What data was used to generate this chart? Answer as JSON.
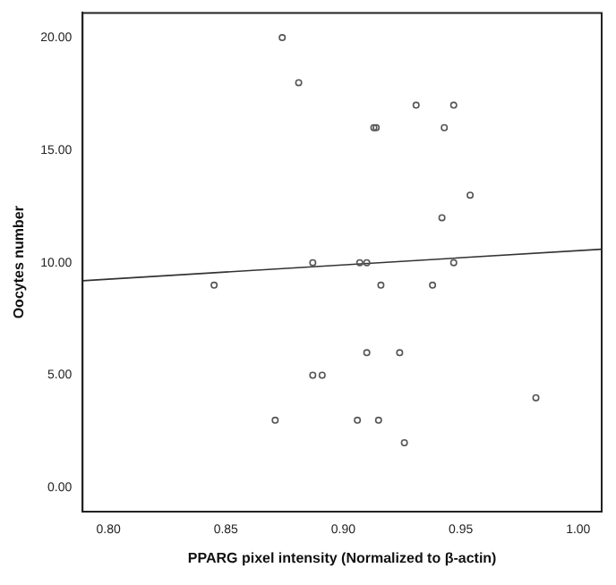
{
  "chart_data": {
    "type": "scatter",
    "xlabel": "PPARG pixel intensity (Normalized to β-actin)",
    "ylabel": "Oocytes number",
    "xlim": [
      0.789,
      1.01
    ],
    "ylim": [
      -1.06,
      21.1
    ],
    "xticks": [
      {
        "value": 0.8,
        "label": "0.80"
      },
      {
        "value": 0.85,
        "label": "0.85"
      },
      {
        "value": 0.9,
        "label": "0.90"
      },
      {
        "value": 0.95,
        "label": "0.95"
      },
      {
        "value": 1.0,
        "label": "1.00"
      }
    ],
    "yticks": [
      {
        "value": 0,
        "label": "0.00"
      },
      {
        "value": 5,
        "label": "5.00"
      },
      {
        "value": 10,
        "label": "10.00"
      },
      {
        "value": 15,
        "label": "15.00"
      },
      {
        "value": 20,
        "label": "20.00"
      }
    ],
    "grid": false,
    "legend": false,
    "marker": "circle",
    "series": [
      {
        "color": "#555555",
        "x": [
          0.874,
          0.881,
          0.913,
          0.914,
          0.931,
          0.947,
          0.943,
          0.954,
          0.942,
          0.887,
          0.907,
          0.91,
          0.947,
          0.845,
          0.916,
          0.938,
          0.91,
          0.924,
          0.887,
          0.891,
          0.982,
          0.871,
          0.906,
          0.915,
          0.926
        ],
        "values": [
          20,
          18,
          16,
          16,
          17,
          17,
          16,
          13,
          12,
          10,
          10,
          10,
          10,
          9,
          9,
          9,
          6,
          6,
          5,
          5,
          4,
          3,
          3,
          3,
          2
        ]
      },
      {
        "type": "line",
        "color": "#333333",
        "marker": "none",
        "x": [
          0.789,
          1.01
        ],
        "values": [
          9.2,
          10.6
        ]
      }
    ]
  }
}
